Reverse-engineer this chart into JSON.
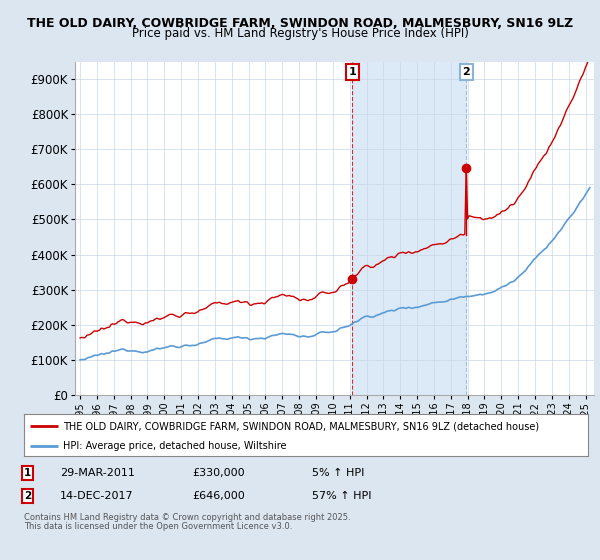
{
  "title_line1": "THE OLD DAIRY, COWBRIDGE FARM, SWINDON ROAD, MALMESBURY, SN16 9LZ",
  "title_line2": "Price paid vs. HM Land Registry's House Price Index (HPI)",
  "property_label": "THE OLD DAIRY, COWBRIDGE FARM, SWINDON ROAD, MALMESBURY, SN16 9LZ (detached house)",
  "hpi_label": "HPI: Average price, detached house, Wiltshire",
  "property_color": "#cc0000",
  "hpi_color": "#5b9bd5",
  "shade_color": "#dce9f7",
  "background_color": "#dce6f1",
  "plot_bg_color": "#ffffff",
  "sale1_date": "29-MAR-2011",
  "sale1_price": 330000,
  "sale1_hpi_pct": "5% ↑ HPI",
  "sale2_date": "14-DEC-2017",
  "sale2_price": 646000,
  "sale2_hpi_pct": "57% ↑ HPI",
  "ylim": [
    0,
    950000
  ],
  "yticks": [
    0,
    100000,
    200000,
    300000,
    400000,
    500000,
    600000,
    700000,
    800000,
    900000
  ],
  "ytick_labels": [
    "£0",
    "£100K",
    "£200K",
    "£300K",
    "£400K",
    "£500K",
    "£600K",
    "£700K",
    "£800K",
    "£900K"
  ],
  "footer_line1": "Contains HM Land Registry data © Crown copyright and database right 2025.",
  "footer_line2": "This data is licensed under the Open Government Licence v3.0."
}
